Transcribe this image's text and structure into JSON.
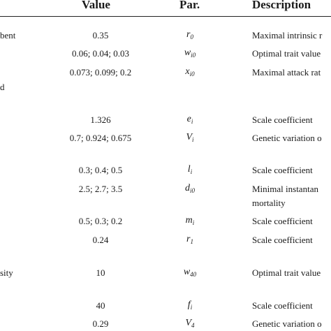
{
  "table": {
    "headers": {
      "value": "Value",
      "par": "Par.",
      "description": "Description"
    },
    "rows": [
      {
        "left": "bent",
        "value": "0.35",
        "par_base": "r",
        "par_sub": "0",
        "desc": "Maximal intrinsic r"
      },
      {
        "left": "",
        "value": "0.06; 0.04; 0.03",
        "par_base": "w",
        "par_sub": "i0",
        "desc": "Optimal trait value"
      },
      {
        "left": "",
        "value": "0.073; 0.099; 0.2",
        "par_base": "x",
        "par_sub": "i0",
        "desc": "Maximal attack rat"
      },
      {
        "left": "d",
        "value": "",
        "par_base": "",
        "par_sub": "",
        "desc": ""
      },
      {
        "left": "",
        "value": "1.326",
        "par_base": "e",
        "par_sub": "i",
        "desc": "Scale coefficient"
      },
      {
        "left": "",
        "value": "0.7; 0.924; 0.675",
        "par_base": "V",
        "par_sub": "i",
        "desc": "Genetic variation o"
      },
      {
        "left": "",
        "value": "0.3; 0.4; 0.5",
        "par_base": "l",
        "par_sub": "i",
        "desc": "Scale coefficient"
      },
      {
        "left": "",
        "value": "2.5; 2.7; 3.5",
        "par_base": "d",
        "par_sub": "i0",
        "desc": "Minimal instantan"
      },
      {
        "left": "",
        "value": "",
        "par_base": "",
        "par_sub": "",
        "desc": "mortality"
      },
      {
        "left": "",
        "value": "0.5; 0.3; 0.2",
        "par_base": "m",
        "par_sub": "i",
        "desc": "Scale coefficient"
      },
      {
        "left": "",
        "value": "0.24",
        "par_base": "r",
        "par_sub": "1",
        "desc": "Scale coefficient"
      },
      {
        "left": "sity",
        "value": "10",
        "par_base": "w",
        "par_sub": "40",
        "desc": "Optimal trait value"
      },
      {
        "left": "",
        "value": "40",
        "par_base": "f",
        "par_sub": "i",
        "desc": "Scale coefficient"
      },
      {
        "left": "",
        "value": "0.29",
        "par_base": "V",
        "par_sub": "4",
        "desc": "Genetic variation o"
      }
    ]
  }
}
